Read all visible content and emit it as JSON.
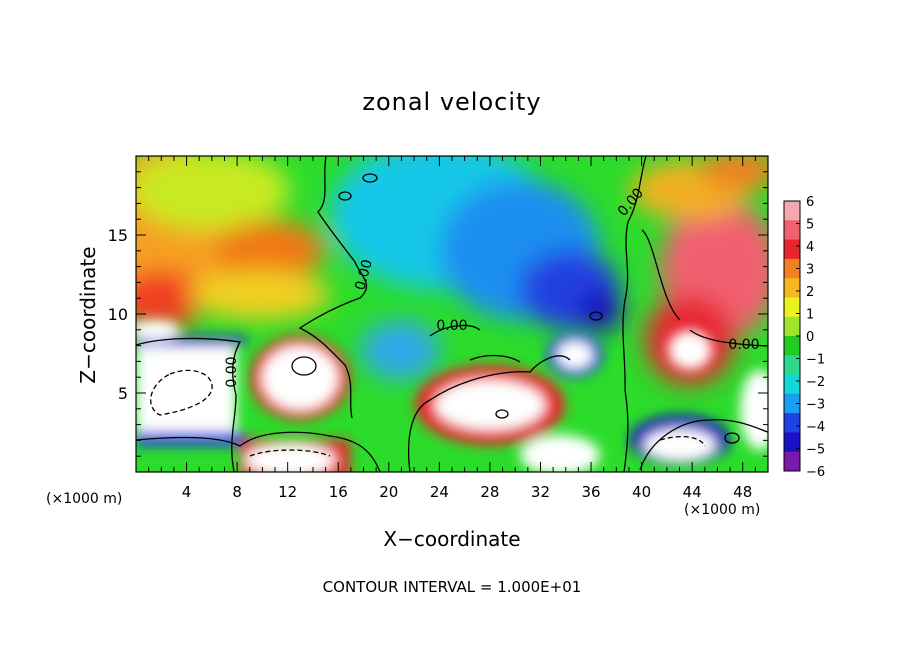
{
  "chart_data": {
    "type": "heatmap",
    "title": "zonal velocity",
    "xlabel": "X−coordinate",
    "ylabel": "Z−coordinate",
    "x_unit_label": "(×1000 m)",
    "x_unit_label_right": "(×1000 m)",
    "footnote": "CONTOUR INTERVAL = 1.000E+01",
    "xlim": [
      0,
      50
    ],
    "ylim": [
      0,
      20
    ],
    "xticks": [
      "4",
      "8",
      "12",
      "16",
      "20",
      "24",
      "28",
      "32",
      "36",
      "40",
      "44",
      "48"
    ],
    "yticks": [
      "5",
      "10",
      "15"
    ],
    "colorbar": {
      "range": [
        -6,
        6
      ],
      "ticks": [
        "6",
        "5",
        "4",
        "3",
        "2",
        "1",
        "0",
        "−1",
        "−2",
        "−3",
        "−4",
        "−5",
        "−6"
      ],
      "colors": [
        "#f3a8b0",
        "#f06070",
        "#e8242c",
        "#f08020",
        "#f7b81e",
        "#ecf21c",
        "#9ee42a",
        "#20cc20",
        "#2ad890",
        "#12d8d8",
        "#1a9ef2",
        "#2040e8",
        "#1a10c8",
        "#7a1aa8"
      ]
    },
    "contour_labels": [
      "0.00",
      "0.00",
      "0.00",
      "0.00",
      "0.00"
    ],
    "features": [
      {
        "x": 10.5,
        "z": 13.5,
        "value": 3.6
      },
      {
        "x": 44.5,
        "z": 12.6,
        "value": 5.6
      },
      {
        "x": 35.5,
        "z": 10.3,
        "value": -5.8
      },
      {
        "x": 26,
        "z": 15,
        "value": -2.8
      },
      {
        "x": 30,
        "z": 17,
        "value": -2.4
      },
      {
        "x": 12,
        "z": 6.2,
        "value": 8.0
      },
      {
        "x": 3.2,
        "z": 5.0,
        "value": -8.0
      },
      {
        "x": 29,
        "z": 4.0,
        "value": 8.0
      },
      {
        "x": 35,
        "z": 7.6,
        "value": -8.0
      },
      {
        "x": 43,
        "z": 1.8,
        "value": -8.0
      }
    ]
  }
}
